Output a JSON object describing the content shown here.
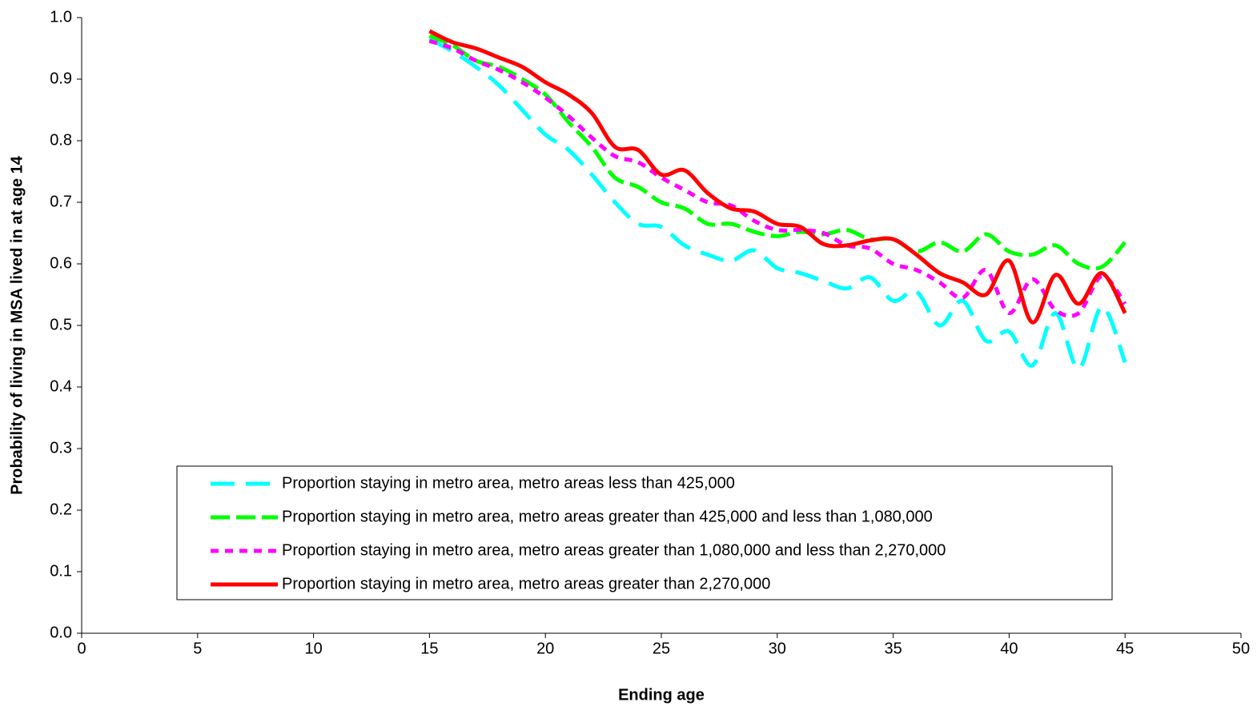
{
  "chart_data": {
    "type": "line",
    "xlabel": "Ending age",
    "ylabel": "Probability of living in MSA lived in at age 14",
    "xlim": [
      0,
      50
    ],
    "xticks": [
      0,
      5,
      10,
      15,
      20,
      25,
      30,
      35,
      40,
      45,
      50
    ],
    "ylim": [
      0,
      1
    ],
    "yticks": [
      {
        "value": 0,
        "label": "0.0"
      },
      0.1,
      0.2,
      0.3,
      0.4,
      0.5,
      0.6,
      0.7,
      0.8,
      0.9,
      {
        "value": 1,
        "label": "1.0"
      }
    ],
    "grid": false,
    "smooth": true,
    "x": [
      15,
      16,
      17,
      18,
      19,
      20,
      21,
      22,
      23,
      24,
      25,
      26,
      27,
      28,
      29,
      30,
      31,
      32,
      33,
      34,
      35,
      36,
      37,
      38,
      39,
      40,
      41,
      42,
      43,
      44,
      45
    ],
    "series": [
      {
        "name": "Proportion staying in metro area, metro areas less than 425,000",
        "color": "#00ffff",
        "dash": "long-dash",
        "values": [
          0.965,
          0.945,
          0.92,
          0.89,
          0.85,
          0.81,
          0.785,
          0.745,
          0.7,
          0.665,
          0.66,
          0.63,
          0.615,
          0.605,
          0.622,
          0.593,
          0.585,
          0.572,
          0.56,
          0.578,
          0.54,
          0.555,
          0.5,
          0.54,
          0.475,
          0.49,
          0.435,
          0.52,
          0.43,
          0.53,
          0.44
        ]
      },
      {
        "name": "Proportion staying in metro area, metro areas greater than 425,000 and less than 1,080,000",
        "color": "#00ff00",
        "dash": "dash",
        "values": [
          0.97,
          0.955,
          0.93,
          0.92,
          0.9,
          0.875,
          0.83,
          0.79,
          0.74,
          0.725,
          0.7,
          0.69,
          0.665,
          0.665,
          0.652,
          0.645,
          0.652,
          0.648,
          0.655,
          0.64,
          0.64,
          0.62,
          0.635,
          0.62,
          0.648,
          0.62,
          0.615,
          0.63,
          0.6,
          0.595,
          0.635
        ]
      },
      {
        "name": "Proportion staying in metro area, metro areas greater than 1,080,000 and less than 2,270,000",
        "color": "#ff00ff",
        "dash": "dot",
        "values": [
          0.962,
          0.95,
          0.93,
          0.915,
          0.895,
          0.87,
          0.84,
          0.805,
          0.775,
          0.765,
          0.74,
          0.72,
          0.7,
          0.695,
          0.67,
          0.655,
          0.655,
          0.65,
          0.63,
          0.625,
          0.6,
          0.59,
          0.57,
          0.545,
          0.59,
          0.52,
          0.575,
          0.525,
          0.52,
          0.58,
          0.535
        ]
      },
      {
        "name": "Proportion staying in metro area, metro areas greater than 2,270,000",
        "color": "#ff0000",
        "dash": "solid",
        "values": [
          0.978,
          0.96,
          0.95,
          0.935,
          0.92,
          0.895,
          0.875,
          0.845,
          0.79,
          0.785,
          0.745,
          0.752,
          0.715,
          0.69,
          0.685,
          0.665,
          0.66,
          0.632,
          0.63,
          0.638,
          0.64,
          0.615,
          0.585,
          0.57,
          0.55,
          0.605,
          0.505,
          0.582,
          0.535,
          0.585,
          0.52
        ]
      }
    ]
  }
}
